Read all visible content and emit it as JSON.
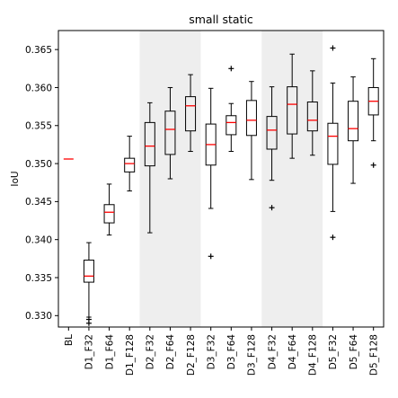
{
  "chart_data": {
    "type": "box",
    "title": "small static",
    "xlabel": "",
    "ylabel": "IoU",
    "ylim": [
      0.3285,
      0.3675
    ],
    "yticks": [
      "0.330",
      "0.335",
      "0.340",
      "0.345",
      "0.350",
      "0.355",
      "0.360",
      "0.365"
    ],
    "ytick_values": [
      0.33,
      0.335,
      0.34,
      0.345,
      0.35,
      0.355,
      0.36,
      0.365
    ],
    "shaded_groups": [
      "D2",
      "D4"
    ],
    "median_color": "#ff0000",
    "shade_color": "#eeeeee",
    "categories": [
      "BL",
      "D1_F32",
      "D1_F64",
      "D1_F128",
      "D2_F32",
      "D2_F64",
      "D2_F128",
      "D3_F32",
      "D3_F64",
      "D3_F128",
      "D4_F32",
      "D4_F64",
      "D4_F128",
      "D5_F32",
      "D5_F64",
      "D5_F128"
    ],
    "boxes": [
      {
        "label": "BL",
        "whisker_low": 0.3506,
        "q1": 0.3506,
        "median": 0.3506,
        "q3": 0.3506,
        "whisker_high": 0.3506,
        "outliers": []
      },
      {
        "label": "D1_F32",
        "whisker_low": 0.3298,
        "q1": 0.3344,
        "median": 0.3352,
        "q3": 0.3373,
        "whisker_high": 0.3396,
        "outliers": [
          0.329,
          0.3295
        ]
      },
      {
        "label": "D1_F64",
        "whisker_low": 0.3406,
        "q1": 0.3422,
        "median": 0.3436,
        "q3": 0.3446,
        "whisker_high": 0.3473,
        "outliers": []
      },
      {
        "label": "D1_F128",
        "whisker_low": 0.3464,
        "q1": 0.3489,
        "median": 0.35,
        "q3": 0.3507,
        "whisker_high": 0.3536,
        "outliers": []
      },
      {
        "label": "D2_F32",
        "whisker_low": 0.3409,
        "q1": 0.3497,
        "median": 0.3523,
        "q3": 0.3554,
        "whisker_high": 0.358,
        "outliers": []
      },
      {
        "label": "D2_F64",
        "whisker_low": 0.348,
        "q1": 0.3512,
        "median": 0.3545,
        "q3": 0.3569,
        "whisker_high": 0.36,
        "outliers": []
      },
      {
        "label": "D2_F128",
        "whisker_low": 0.3516,
        "q1": 0.3543,
        "median": 0.3576,
        "q3": 0.3588,
        "whisker_high": 0.3617,
        "outliers": []
      },
      {
        "label": "D3_F32",
        "whisker_low": 0.3441,
        "q1": 0.3498,
        "median": 0.3525,
        "q3": 0.3552,
        "whisker_high": 0.3599,
        "outliers": [
          0.3378
        ]
      },
      {
        "label": "D3_F64",
        "whisker_low": 0.3516,
        "q1": 0.3538,
        "median": 0.3554,
        "q3": 0.3563,
        "whisker_high": 0.3579,
        "outliers": [
          0.3625
        ]
      },
      {
        "label": "D3_F128",
        "whisker_low": 0.3479,
        "q1": 0.3537,
        "median": 0.3557,
        "q3": 0.3583,
        "whisker_high": 0.3608,
        "outliers": []
      },
      {
        "label": "D4_F32",
        "whisker_low": 0.3478,
        "q1": 0.3519,
        "median": 0.3544,
        "q3": 0.3562,
        "whisker_high": 0.3601,
        "outliers": [
          0.3442
        ]
      },
      {
        "label": "D4_F64",
        "whisker_low": 0.3507,
        "q1": 0.3539,
        "median": 0.3578,
        "q3": 0.3601,
        "whisker_high": 0.3644,
        "outliers": []
      },
      {
        "label": "D4_F128",
        "whisker_low": 0.3511,
        "q1": 0.3543,
        "median": 0.3557,
        "q3": 0.3581,
        "whisker_high": 0.3622,
        "outliers": []
      },
      {
        "label": "D5_F32",
        "whisker_low": 0.3437,
        "q1": 0.3499,
        "median": 0.3536,
        "q3": 0.3553,
        "whisker_high": 0.3606,
        "outliers": [
          0.3403,
          0.3652
        ]
      },
      {
        "label": "D5_F64",
        "whisker_low": 0.3474,
        "q1": 0.353,
        "median": 0.3546,
        "q3": 0.3582,
        "whisker_high": 0.3614,
        "outliers": []
      },
      {
        "label": "D5_F128",
        "whisker_low": 0.353,
        "q1": 0.3564,
        "median": 0.3582,
        "q3": 0.36,
        "whisker_high": 0.3638,
        "outliers": [
          0.3498
        ]
      }
    ]
  }
}
